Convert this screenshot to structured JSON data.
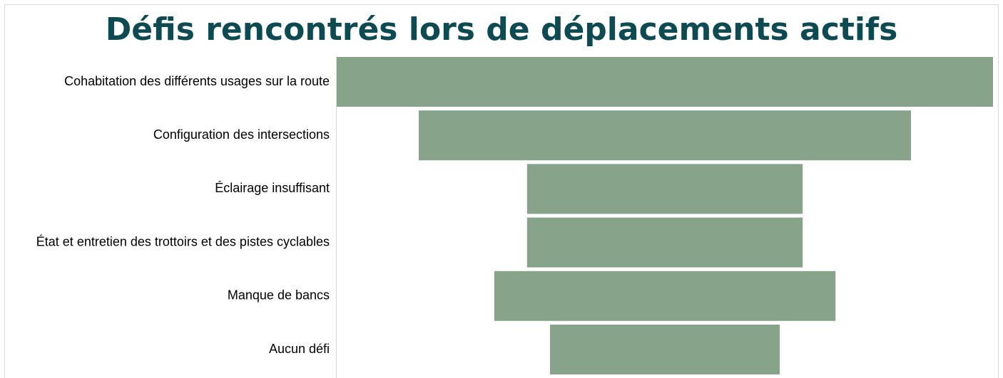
{
  "chart_data": {
    "type": "funnel",
    "title": "Défis rencontrés lors de déplacements actifs",
    "categories": [
      "Cohabitation des différents usages sur la route",
      "Configuration des intersections",
      "Éclairage insuffisant",
      "État et entretien des trottoirs et des pistes cyclables",
      "Manque de bancs",
      "Aucun défi"
    ],
    "values": [
      100,
      75,
      42,
      42,
      52,
      35
    ],
    "color": "#87a389"
  }
}
